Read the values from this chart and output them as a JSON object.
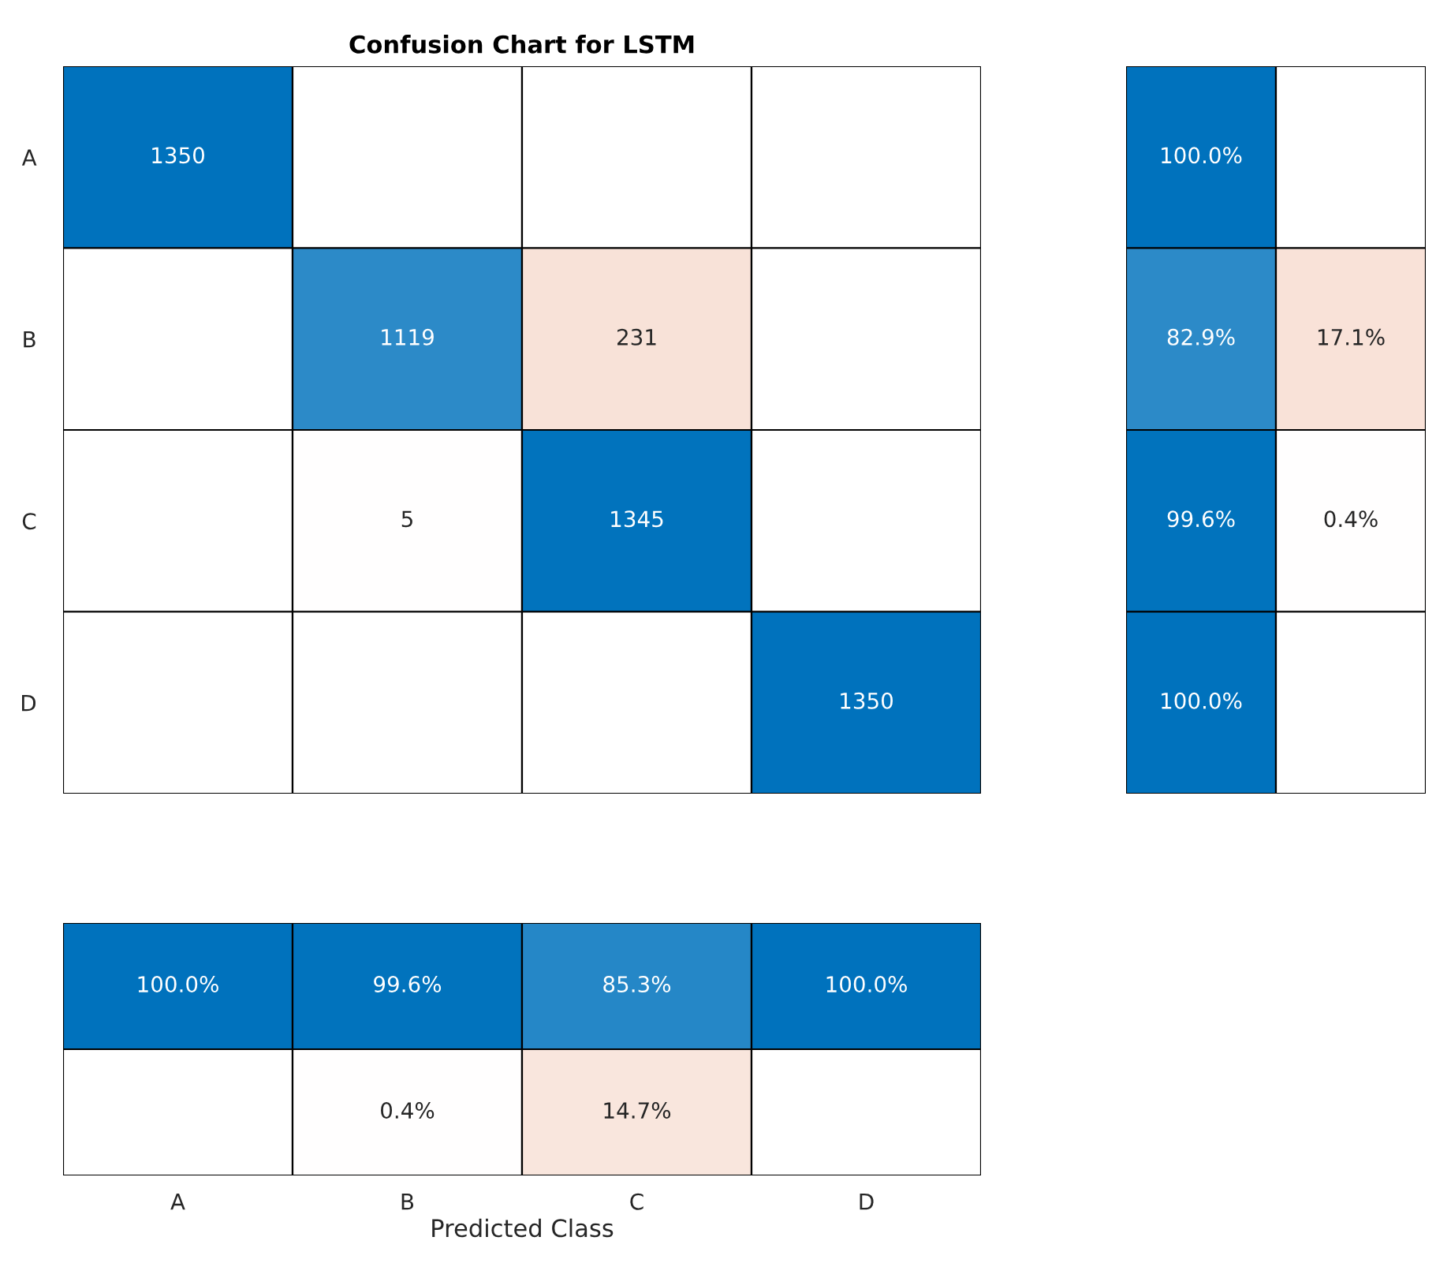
{
  "chart_data": [
    {
      "type": "heatmap",
      "title": "Confusion Chart for LSTM",
      "categories": [
        null,
        null,
        null,
        null
      ],
      "y_categories": [
        "A",
        "B",
        "C",
        "D"
      ],
      "tick_labels": "y",
      "cells": [
        [
          1350,
          null,
          null,
          null
        ],
        [
          null,
          1119,
          231,
          null
        ],
        [
          null,
          5,
          1345,
          null
        ],
        [
          null,
          null,
          null,
          1350
        ]
      ],
      "cell_labels": [
        [
          "1350",
          null,
          null,
          null
        ],
        [
          null,
          "1119",
          "231",
          null
        ],
        [
          null,
          "5",
          "1345",
          null
        ],
        [
          null,
          null,
          null,
          "1350"
        ]
      ],
      "colors": [
        [
          "#0072bd",
          null,
          null,
          null
        ],
        [
          null,
          "#0072bd",
          "#d95319",
          null
        ],
        [
          null,
          "#d95319",
          "#0072bd",
          null
        ],
        [
          null,
          null,
          null,
          "#0072bd"
        ]
      ]
    },
    {
      "type": "heatmap",
      "categories": [
        null,
        null
      ],
      "y_categories": [
        null,
        null,
        null,
        null
      ],
      "tick_labels": false,
      "cells": [
        [
          100.0,
          null
        ],
        [
          82.9,
          17.1
        ],
        [
          99.6,
          0.4
        ],
        [
          100.0,
          null
        ]
      ],
      "cell_labels": [
        [
          "100.0%",
          null
        ],
        [
          "82.9%",
          "17.1%"
        ],
        [
          "99.6%",
          "0.4%"
        ],
        [
          "100.0%",
          null
        ]
      ],
      "colors": [
        [
          "#0072bd",
          null
        ],
        [
          "#0072bd",
          "#d95319"
        ],
        [
          "#0072bd",
          "#d95319"
        ],
        [
          "#0072bd",
          null
        ]
      ]
    },
    {
      "type": "heatmap",
      "xlabel": "Predicted Class",
      "categories": [
        "A",
        "B",
        "C",
        "D"
      ],
      "y_categories": [
        null,
        null
      ],
      "tick_labels": "x",
      "cells": [
        [
          100.0,
          99.6,
          85.3,
          100.0
        ],
        [
          null,
          0.4,
          14.7,
          null
        ]
      ],
      "cell_labels": [
        [
          "100.0%",
          "99.6%",
          "85.3%",
          "100.0%"
        ],
        [
          null,
          "0.4%",
          "14.7%",
          null
        ]
      ],
      "colors": [
        [
          "#0072bd",
          "#0072bd",
          "#0072bd",
          "#0072bd"
        ],
        [
          null,
          "#d95319",
          "#d95319",
          null
        ]
      ]
    }
  ]
}
